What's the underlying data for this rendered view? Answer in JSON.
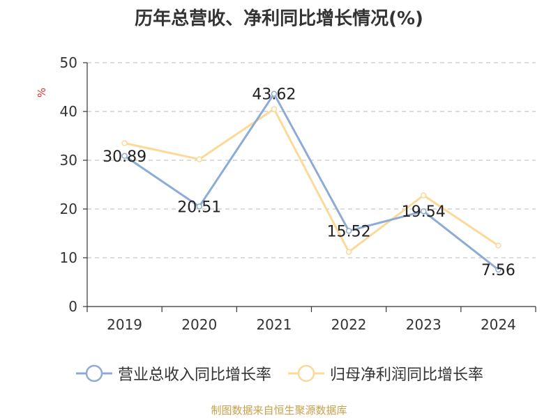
{
  "title": "历年总营收、净利同比增长情况(%)",
  "source": "制图数据来自恒生聚源数据库",
  "chart_data": {
    "type": "line",
    "title": "历年总营收、净利同比增长情况(%)",
    "ylabel": "%",
    "xlabel": "",
    "ylim": [
      0,
      50
    ],
    "yticks": [
      0,
      10,
      20,
      30,
      40,
      50
    ],
    "grid": true,
    "legend_position": "bottom",
    "categories": [
      "2019",
      "2020",
      "2021",
      "2022",
      "2023",
      "2024"
    ],
    "series": [
      {
        "name": "营业总收入同比增长率",
        "color": "#8eabd6",
        "values": [
          30.89,
          20.51,
          43.62,
          15.52,
          19.54,
          7.56
        ],
        "labels": [
          "30.89",
          "20.51",
          "43.62",
          "15.52",
          "19.54",
          "7.56"
        ]
      },
      {
        "name": "归母净利润同比增长率",
        "color": "#fbd999",
        "values": [
          33.5,
          30.2,
          40.5,
          11.2,
          22.8,
          12.5
        ]
      }
    ]
  }
}
